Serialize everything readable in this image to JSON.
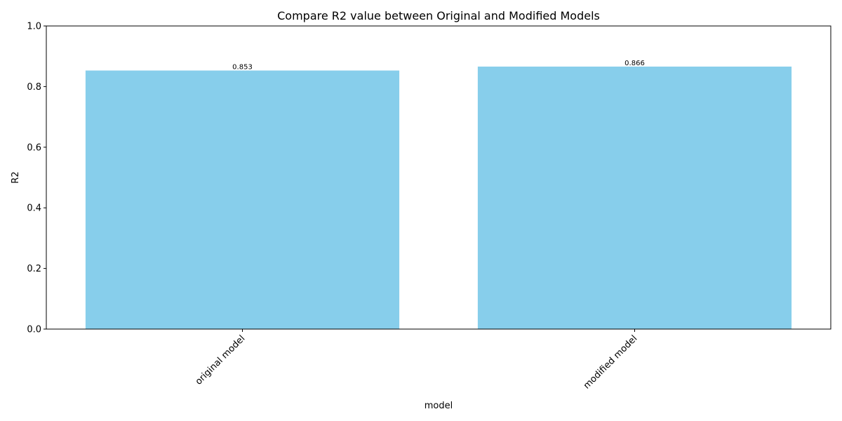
{
  "chart_data": {
    "type": "bar",
    "title": "Compare R2 value between Original and Modified Models",
    "xlabel": "model",
    "ylabel": "R2",
    "categories": [
      "original model",
      "modified model"
    ],
    "values": [
      0.853,
      0.866
    ],
    "value_labels": [
      "0.853",
      "0.866"
    ],
    "ylim": [
      0,
      1.0
    ],
    "yticks": [
      0.0,
      0.2,
      0.4,
      0.6,
      0.8,
      1.0
    ],
    "ytick_labels": [
      "0.0",
      "0.2",
      "0.4",
      "0.6",
      "0.8",
      "1.0"
    ],
    "bar_color": "#87CEEB",
    "grid": false,
    "legend": "none"
  }
}
